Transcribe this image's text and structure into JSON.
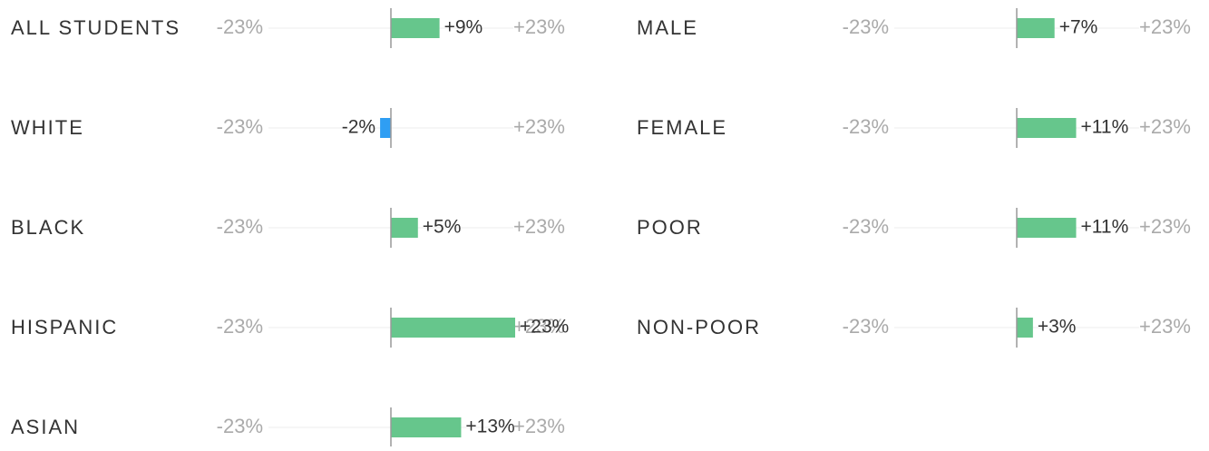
{
  "chart_data": {
    "type": "bar",
    "xlim": [
      -23,
      23
    ],
    "xticks": [
      {
        "value": -23,
        "label": "-23%"
      },
      {
        "value": 23,
        "label": "+23%"
      }
    ],
    "positive_color": "#66c68c",
    "negative_color": "#2f9ef3",
    "panels": [
      {
        "categories": [
          "ALL STUDENTS",
          "WHITE",
          "BLACK",
          "HISPANIC",
          "ASIAN"
        ],
        "values": [
          9,
          -2,
          5,
          23,
          13
        ],
        "value_labels": [
          "+9%",
          "-2%",
          "+5%",
          "+23%",
          "+13%"
        ]
      },
      {
        "categories": [
          "MALE",
          "FEMALE",
          "POOR",
          "NON-POOR"
        ],
        "values": [
          7,
          11,
          11,
          3
        ],
        "value_labels": [
          "+7%",
          "+11%",
          "+11%",
          "+3%"
        ]
      }
    ]
  }
}
